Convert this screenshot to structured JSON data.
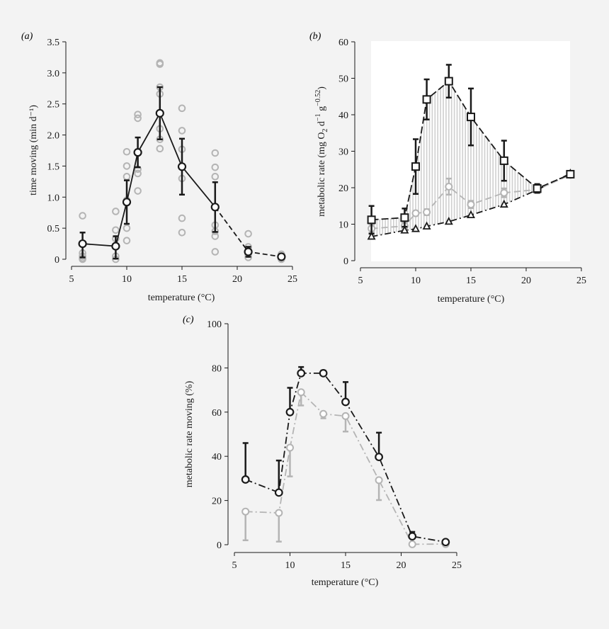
{
  "colors": {
    "background": "#f3f3f3",
    "black": "#1a1a1a",
    "grey": "#b4b4b4",
    "panel_b_plot_bg": "#ffffff",
    "hatch": "#cfcfcf"
  },
  "chart_data": [
    {
      "panel": "(a)",
      "type": "scatter",
      "title": "",
      "xlabel": "temperature (°C)",
      "ylabel": "time moving (min d⁻¹)",
      "xlim": [
        5,
        25
      ],
      "ylim": [
        0,
        3.5
      ],
      "x_ticks": [
        "5",
        "10",
        "15",
        "20",
        "25"
      ],
      "y_ticks": [
        "0",
        "0.5",
        "1.0",
        "1.5",
        "2.0",
        "2.5",
        "3.0",
        "3.5"
      ],
      "series": [
        {
          "name": "mean",
          "x": [
            6,
            9,
            10,
            11,
            13,
            15,
            18,
            21,
            24
          ],
          "y": [
            0.25,
            0.21,
            0.92,
            1.72,
            2.35,
            1.49,
            0.84,
            0.12,
            0.04
          ],
          "err_low": [
            0.22,
            0.2,
            0.35,
            0.24,
            0.42,
            0.45,
            0.4,
            0.08,
            0.0
          ],
          "err_high": [
            0.18,
            0.16,
            0.35,
            0.24,
            0.42,
            0.45,
            0.4,
            0.08,
            0.0
          ]
        },
        {
          "name": "individuals",
          "points": [
            [
              6,
              0.7
            ],
            [
              6,
              0.1
            ],
            [
              6,
              0.05
            ],
            [
              6,
              0.02
            ],
            [
              6,
              0.0
            ],
            [
              9,
              0.77
            ],
            [
              9,
              0.47
            ],
            [
              9,
              0.33
            ],
            [
              9,
              0.05
            ],
            [
              9,
              0.0
            ],
            [
              10,
              1.73
            ],
            [
              10,
              1.5
            ],
            [
              10,
              1.33
            ],
            [
              10,
              0.95
            ],
            [
              10,
              0.5
            ],
            [
              10,
              0.3
            ],
            [
              11,
              2.33
            ],
            [
              11,
              2.27
            ],
            [
              11,
              1.72
            ],
            [
              11,
              1.45
            ],
            [
              11,
              1.38
            ],
            [
              11,
              1.1
            ],
            [
              13,
              3.16
            ],
            [
              13,
              3.14
            ],
            [
              13,
              2.77
            ],
            [
              13,
              2.66
            ],
            [
              13,
              2.1
            ],
            [
              13,
              1.93
            ],
            [
              13,
              1.78
            ],
            [
              15,
              2.43
            ],
            [
              15,
              2.07
            ],
            [
              15,
              1.77
            ],
            [
              15,
              1.48
            ],
            [
              15,
              1.3
            ],
            [
              15,
              0.66
            ],
            [
              15,
              0.43
            ],
            [
              18,
              1.71
            ],
            [
              18,
              1.48
            ],
            [
              18,
              1.33
            ],
            [
              18,
              0.55
            ],
            [
              18,
              0.45
            ],
            [
              18,
              0.37
            ],
            [
              18,
              0.12
            ],
            [
              21,
              0.41
            ],
            [
              21,
              0.2
            ],
            [
              21,
              0.08
            ],
            [
              21,
              0.03
            ],
            [
              24,
              0.08
            ],
            [
              24,
              0.05
            ],
            [
              24,
              0.02
            ],
            [
              24,
              0.0
            ]
          ]
        }
      ]
    },
    {
      "panel": "(b)",
      "type": "line",
      "title": "",
      "xlabel": "temperature (°C)",
      "ylabel_parts": [
        "metabolic rate (mg O",
        "2",
        " d",
        "−1",
        " g",
        "−0.52",
        ")"
      ],
      "xlim": [
        5,
        25
      ],
      "ylim": [
        0,
        60
      ],
      "x_ticks": [
        "5",
        "10",
        "15",
        "20",
        "25"
      ],
      "y_ticks": [
        "0",
        "10",
        "20",
        "30",
        "40",
        "50",
        "60"
      ],
      "series": [
        {
          "name": "total (squares)",
          "x": [
            6,
            9,
            10,
            11,
            13,
            15,
            18,
            21,
            24
          ],
          "y": [
            11.2,
            11.8,
            25.8,
            44.2,
            49.2,
            39.4,
            27.4,
            19.8,
            23.7
          ],
          "err_high": [
            3.8,
            2.5,
            7.5,
            5.5,
            4.5,
            7.8,
            5.5,
            1.2,
            0.0
          ],
          "err_low": [
            3.8,
            2.5,
            7.5,
            5.5,
            4.5,
            7.8,
            5.5,
            1.2,
            0.0
          ]
        },
        {
          "name": "routine (grey circles)",
          "x": [
            6,
            9,
            10,
            11,
            13,
            15,
            18,
            21,
            24
          ],
          "y": [
            8.8,
            9.5,
            13.0,
            13.3,
            20.3,
            15.4,
            18.6,
            19.5,
            23.5
          ],
          "err_high": [
            1.2,
            1.0,
            0.5,
            0.8,
            2.2,
            1.0,
            1.2,
            0.5,
            0.0
          ],
          "err_low": [
            1.2,
            1.0,
            0.5,
            0.8,
            2.2,
            1.0,
            1.2,
            0.5,
            0.0
          ]
        },
        {
          "name": "resting (triangles)",
          "x": [
            6,
            9,
            10,
            11,
            13,
            15,
            18,
            21,
            24
          ],
          "y": [
            6.6,
            8.3,
            8.7,
            9.4,
            10.7,
            12.5,
            15.4,
            19.4,
            23.9
          ]
        }
      ]
    },
    {
      "panel": "(c)",
      "type": "line",
      "title": "",
      "xlabel": "temperature (°C)",
      "ylabel": "metabolic rate moving (%)",
      "xlim": [
        5,
        25
      ],
      "ylim": [
        0,
        100
      ],
      "x_ticks": [
        "5",
        "10",
        "15",
        "20",
        "25"
      ],
      "y_ticks": [
        "0",
        "20",
        "40",
        "60",
        "80",
        "100"
      ],
      "series": [
        {
          "name": "black",
          "x": [
            6,
            9,
            10,
            11,
            13,
            15,
            18,
            21,
            24
          ],
          "y": [
            29.5,
            23.6,
            60.0,
            77.6,
            77.6,
            64.6,
            39.7,
            3.8,
            1.2
          ],
          "err_high": [
            16.5,
            14.5,
            11.0,
            2.8,
            1.2,
            9.0,
            11.0,
            2.0,
            0.0
          ]
        },
        {
          "name": "grey",
          "x": [
            6,
            9,
            10,
            11,
            13,
            15,
            18,
            21,
            24
          ],
          "y": [
            15.0,
            14.4,
            43.9,
            69.0,
            59.2,
            58.2,
            29.2,
            0.2,
            0.3
          ],
          "err_low": [
            13.0,
            13.0,
            13.0,
            6.0,
            2.0,
            7.0,
            9.0,
            0.0,
            0.0
          ]
        }
      ]
    }
  ]
}
